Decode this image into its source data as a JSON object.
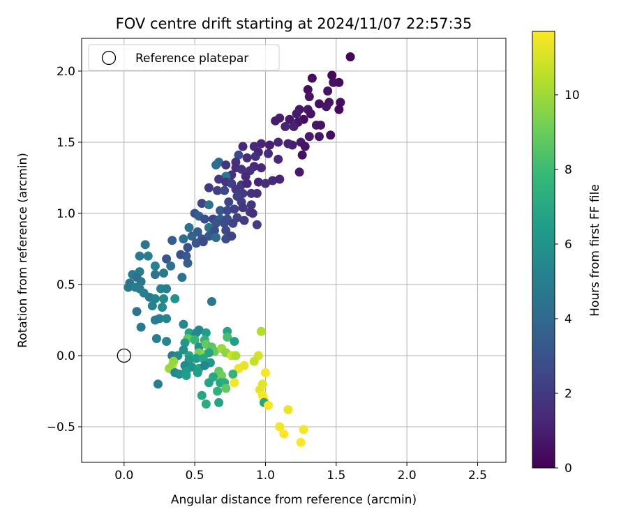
{
  "chart_data": {
    "type": "scatter",
    "title": "FOV centre drift starting at 2024/11/07 22:57:35",
    "xlabel": "Angular distance from reference (arcmin)",
    "ylabel": "Rotation from reference (arcmin)",
    "xlim": [
      -0.3,
      2.7
    ],
    "ylim": [
      -0.75,
      2.23
    ],
    "xticks": [
      0.0,
      0.5,
      1.0,
      1.5,
      2.0,
      2.5
    ],
    "xtick_labels": [
      "0.0",
      "0.5",
      "1.0",
      "1.5",
      "2.0",
      "2.5"
    ],
    "yticks": [
      -0.5,
      0.0,
      0.5,
      1.0,
      1.5,
      2.0
    ],
    "ytick_labels": [
      "−0.5",
      "0.0",
      "0.5",
      "1.0",
      "1.5",
      "2.0"
    ],
    "grid": true,
    "legend": {
      "position": "top-left",
      "entries": [
        {
          "label": "Reference platepar",
          "marker": "open-circle",
          "color": "#000000"
        }
      ]
    },
    "reference_point": {
      "x": 0.0,
      "y": 0.0
    },
    "colorbar": {
      "label": "Hours from first FF file",
      "colormap": "viridis",
      "range": [
        0,
        11.7
      ],
      "ticks": [
        0,
        2,
        4,
        6,
        8,
        10
      ],
      "tick_labels": [
        "0",
        "2",
        "4",
        "6",
        "8",
        "10"
      ],
      "colors": [
        "#440154",
        "#482878",
        "#3e4989",
        "#31688e",
        "#26828e",
        "#1f9e89",
        "#35b779",
        "#6ece58",
        "#b5de2b",
        "#fde725"
      ]
    },
    "series": [
      {
        "color_by": "hours",
        "points": [
          [
            1.6,
            2.1,
            0.1
          ],
          [
            1.47,
            1.97,
            0.2
          ],
          [
            1.52,
            1.92,
            0.3
          ],
          [
            1.33,
            1.95,
            0.4
          ],
          [
            1.48,
            1.92,
            0.5
          ],
          [
            1.44,
            1.86,
            0.6
          ],
          [
            1.3,
            1.87,
            0.5
          ],
          [
            1.53,
            1.78,
            0.4
          ],
          [
            1.52,
            1.73,
            0.3
          ],
          [
            1.45,
            1.78,
            0.6
          ],
          [
            1.43,
            1.75,
            0.7
          ],
          [
            1.38,
            1.77,
            0.5
          ],
          [
            1.31,
            1.82,
            0.6
          ],
          [
            1.3,
            1.73,
            0.8
          ],
          [
            1.24,
            1.73,
            0.7
          ],
          [
            1.22,
            1.7,
            0.9
          ],
          [
            1.32,
            1.7,
            0.6
          ],
          [
            1.27,
            1.66,
            0.4
          ],
          [
            1.23,
            1.64,
            0.7
          ],
          [
            1.17,
            1.66,
            0.8
          ],
          [
            1.1,
            1.67,
            1.0
          ],
          [
            1.07,
            1.65,
            0.9
          ],
          [
            1.2,
            1.61,
            1.1
          ],
          [
            1.14,
            1.61,
            1.2
          ],
          [
            1.36,
            1.62,
            0.8
          ],
          [
            1.39,
            1.62,
            0.6
          ],
          [
            1.46,
            1.55,
            0.5
          ],
          [
            1.38,
            1.54,
            0.7
          ],
          [
            1.31,
            1.54,
            0.9
          ],
          [
            1.25,
            1.5,
            0.8
          ],
          [
            1.19,
            1.48,
            1.0
          ],
          [
            1.28,
            1.47,
            0.6
          ],
          [
            1.26,
            1.41,
            0.5
          ],
          [
            1.16,
            1.49,
            1.1
          ],
          [
            1.09,
            1.5,
            1.2
          ],
          [
            1.03,
            1.48,
            1.0
          ],
          [
            0.97,
            1.49,
            1.2
          ],
          [
            0.92,
            1.47,
            1.4
          ],
          [
            0.84,
            1.47,
            1.3
          ],
          [
            0.95,
            1.43,
            1.2
          ],
          [
            1.02,
            1.42,
            1.5
          ],
          [
            1.09,
            1.38,
            1.3
          ],
          [
            0.93,
            1.4,
            1.6
          ],
          [
            0.81,
            1.41,
            2.6
          ],
          [
            0.87,
            1.39,
            1.5
          ],
          [
            0.79,
            1.36,
            1.6
          ],
          [
            0.67,
            1.36,
            4.0
          ],
          [
            0.65,
            1.34,
            4.2
          ],
          [
            0.72,
            1.34,
            1.8
          ],
          [
            0.79,
            1.32,
            1.5
          ],
          [
            0.83,
            1.31,
            1.7
          ],
          [
            0.92,
            1.33,
            1.4
          ],
          [
            0.89,
            1.3,
            1.6
          ],
          [
            0.97,
            1.32,
            1.3
          ],
          [
            1.24,
            1.29,
            0.8
          ],
          [
            0.76,
            1.27,
            1.7
          ],
          [
            0.72,
            1.26,
            4.8
          ],
          [
            0.86,
            1.26,
            1.4
          ],
          [
            0.67,
            1.24,
            2.0
          ],
          [
            0.72,
            1.22,
            1.8
          ],
          [
            0.76,
            1.21,
            2.2
          ],
          [
            0.83,
            1.2,
            1.9
          ],
          [
            0.87,
            1.21,
            1.3
          ],
          [
            0.95,
            1.22,
            1.2
          ],
          [
            1.0,
            1.21,
            1.6
          ],
          [
            1.05,
            1.23,
            1.4
          ],
          [
            1.1,
            1.24,
            1.2
          ],
          [
            0.6,
            1.18,
            2.0
          ],
          [
            0.66,
            1.16,
            2.3
          ],
          [
            0.71,
            1.16,
            2.6
          ],
          [
            0.79,
            1.17,
            1.9
          ],
          [
            0.84,
            1.14,
            2.0
          ],
          [
            0.9,
            1.14,
            1.7
          ],
          [
            0.94,
            1.14,
            1.6
          ],
          [
            0.8,
            1.12,
            2.3
          ],
          [
            0.74,
            1.08,
            2.5
          ],
          [
            0.83,
            1.08,
            2.2
          ],
          [
            0.9,
            1.06,
            1.9
          ],
          [
            0.55,
            1.07,
            2.4
          ],
          [
            0.6,
            1.06,
            4.4
          ],
          [
            0.68,
            1.02,
            3.2
          ],
          [
            0.73,
            1.02,
            2.6
          ],
          [
            0.78,
            1.03,
            2.3
          ],
          [
            0.84,
            1.04,
            1.9
          ],
          [
            0.89,
            1.01,
            2.0
          ],
          [
            0.91,
            1.0,
            1.6
          ],
          [
            0.5,
            1.0,
            3.0
          ],
          [
            0.53,
            0.98,
            3.5
          ],
          [
            0.57,
            0.96,
            2.8
          ],
          [
            0.63,
            0.96,
            2.5
          ],
          [
            0.68,
            0.96,
            3.3
          ],
          [
            0.73,
            0.96,
            2.8
          ],
          [
            0.8,
            0.97,
            2.4
          ],
          [
            0.85,
            0.95,
            2.1
          ],
          [
            0.65,
            0.93,
            3.0
          ],
          [
            0.71,
            0.93,
            2.7
          ],
          [
            0.77,
            0.93,
            2.4
          ],
          [
            0.46,
            0.9,
            4.4
          ],
          [
            0.52,
            0.87,
            3.4
          ],
          [
            0.6,
            0.9,
            4.5
          ],
          [
            0.64,
            0.88,
            2.8
          ],
          [
            0.72,
            0.88,
            2.6
          ],
          [
            0.94,
            0.92,
            2.0
          ],
          [
            0.48,
            0.84,
            3.6
          ],
          [
            0.55,
            0.82,
            3.0
          ],
          [
            0.6,
            0.84,
            3.2
          ],
          [
            0.65,
            0.83,
            4.0
          ],
          [
            0.72,
            0.82,
            2.8
          ],
          [
            0.76,
            0.84,
            2.4
          ],
          [
            0.34,
            0.81,
            3.5
          ],
          [
            0.42,
            0.82,
            4.2
          ],
          [
            0.51,
            0.79,
            3.2
          ],
          [
            0.56,
            0.8,
            2.7
          ],
          [
            0.45,
            0.76,
            2.9
          ],
          [
            0.15,
            0.78,
            4.6
          ],
          [
            0.11,
            0.7,
            4.7
          ],
          [
            0.17,
            0.7,
            5.0
          ],
          [
            0.4,
            0.71,
            2.8
          ],
          [
            0.44,
            0.7,
            3.3
          ],
          [
            0.3,
            0.68,
            3.2
          ],
          [
            0.33,
            0.63,
            4.3
          ],
          [
            0.22,
            0.63,
            5.2
          ],
          [
            0.45,
            0.65,
            3.5
          ],
          [
            0.06,
            0.57,
            4.9
          ],
          [
            0.11,
            0.59,
            5.0
          ],
          [
            0.09,
            0.55,
            4.3
          ],
          [
            0.22,
            0.57,
            4.4
          ],
          [
            0.28,
            0.58,
            4.8
          ],
          [
            0.12,
            0.52,
            4.6
          ],
          [
            0.04,
            0.51,
            4.4
          ],
          [
            0.03,
            0.48,
            4.7
          ],
          [
            0.08,
            0.48,
            5.0
          ],
          [
            0.11,
            0.47,
            4.9
          ],
          [
            0.14,
            0.44,
            5.1
          ],
          [
            0.26,
            0.47,
            5.2
          ],
          [
            0.3,
            0.47,
            5.0
          ],
          [
            0.41,
            0.55,
            4.5
          ],
          [
            0.18,
            0.41,
            4.8
          ],
          [
            0.22,
            0.4,
            5.3
          ],
          [
            0.28,
            0.4,
            5.5
          ],
          [
            0.36,
            0.4,
            6.0
          ],
          [
            0.2,
            0.35,
            5.2
          ],
          [
            0.27,
            0.34,
            5.6
          ],
          [
            0.62,
            0.38,
            4.8
          ],
          [
            0.09,
            0.31,
            4.5
          ],
          [
            0.25,
            0.26,
            5.1
          ],
          [
            0.3,
            0.26,
            5.3
          ],
          [
            0.22,
            0.25,
            5.0
          ],
          [
            0.12,
            0.2,
            4.8
          ],
          [
            0.42,
            0.22,
            5.5
          ],
          [
            0.46,
            0.16,
            6.8
          ],
          [
            0.51,
            0.16,
            5.6
          ],
          [
            0.53,
            0.18,
            5.4
          ],
          [
            0.58,
            0.16,
            6.5
          ],
          [
            0.73,
            0.17,
            6.8
          ],
          [
            0.45,
            0.12,
            8.8
          ],
          [
            0.5,
            0.11,
            7.7
          ],
          [
            0.57,
            0.11,
            7.5
          ],
          [
            0.73,
            0.13,
            8.2
          ],
          [
            0.78,
            0.1,
            6.6
          ],
          [
            0.97,
            0.17,
            10.3
          ],
          [
            0.23,
            0.12,
            5.0
          ],
          [
            0.3,
            0.1,
            5.5
          ],
          [
            0.43,
            0.09,
            6.2
          ],
          [
            0.53,
            0.06,
            6.0
          ],
          [
            0.58,
            0.08,
            8.9
          ],
          [
            0.62,
            0.06,
            8.6
          ],
          [
            0.64,
            0.03,
            8.9
          ],
          [
            0.69,
            0.05,
            10.0
          ],
          [
            0.72,
            0.02,
            9.7
          ],
          [
            0.76,
            0.0,
            10.8
          ],
          [
            0.79,
            0.0,
            10.2
          ],
          [
            0.42,
            0.04,
            5.8
          ],
          [
            0.46,
            0.0,
            6.8
          ],
          [
            0.53,
            0.02,
            9.2
          ],
          [
            0.57,
            0.01,
            9.7
          ],
          [
            0.6,
            0.02,
            6.8
          ],
          [
            0.34,
            0.0,
            4.8
          ],
          [
            0.38,
            0.0,
            5.6
          ],
          [
            0.46,
            -0.03,
            6.2
          ],
          [
            0.51,
            -0.02,
            6.5
          ],
          [
            0.56,
            -0.02,
            7.0
          ],
          [
            0.61,
            -0.05,
            6.2
          ],
          [
            0.95,
            0.0,
            11.0
          ],
          [
            0.92,
            -0.04,
            10.7
          ],
          [
            0.34,
            -0.07,
            10.3
          ],
          [
            0.35,
            -0.04,
            9.8
          ],
          [
            0.43,
            -0.07,
            5.5
          ],
          [
            0.48,
            -0.08,
            6.0
          ],
          [
            0.53,
            -0.09,
            6.8
          ],
          [
            0.57,
            -0.07,
            5.3
          ],
          [
            0.85,
            -0.07,
            11.3
          ],
          [
            0.81,
            -0.09,
            11.4
          ],
          [
            0.67,
            -0.11,
            8.8
          ],
          [
            0.69,
            -0.14,
            9.1
          ],
          [
            0.32,
            -0.09,
            9.9
          ],
          [
            0.36,
            -0.12,
            5.3
          ],
          [
            0.39,
            -0.13,
            5.8
          ],
          [
            0.44,
            -0.11,
            6.3
          ],
          [
            0.52,
            -0.12,
            6.5
          ],
          [
            0.63,
            -0.15,
            7.0
          ],
          [
            0.77,
            -0.13,
            7.6
          ],
          [
            1.0,
            -0.12,
            11.6
          ],
          [
            0.44,
            -0.14,
            6.5
          ],
          [
            0.6,
            -0.19,
            6.8
          ],
          [
            0.68,
            -0.19,
            7.0
          ],
          [
            0.71,
            -0.19,
            7.2
          ],
          [
            0.78,
            -0.19,
            11.5
          ],
          [
            0.24,
            -0.2,
            5.0
          ],
          [
            0.98,
            -0.2,
            11.2
          ],
          [
            0.72,
            -0.23,
            8.8
          ],
          [
            0.96,
            -0.24,
            11.3
          ],
          [
            0.98,
            -0.28,
            11.5
          ],
          [
            0.99,
            -0.31,
            11.6
          ],
          [
            0.66,
            -0.25,
            7.5
          ],
          [
            0.55,
            -0.28,
            6.9
          ],
          [
            0.67,
            -0.33,
            6.8
          ],
          [
            0.58,
            -0.34,
            7.3
          ],
          [
            0.99,
            -0.33,
            6.9
          ],
          [
            1.02,
            -0.35,
            11.6
          ],
          [
            1.16,
            -0.38,
            11.4
          ],
          [
            1.1,
            -0.5,
            11.5
          ],
          [
            1.13,
            -0.55,
            11.7
          ],
          [
            1.27,
            -0.52,
            11.5
          ],
          [
            1.25,
            -0.61,
            11.7
          ]
        ]
      }
    ]
  }
}
